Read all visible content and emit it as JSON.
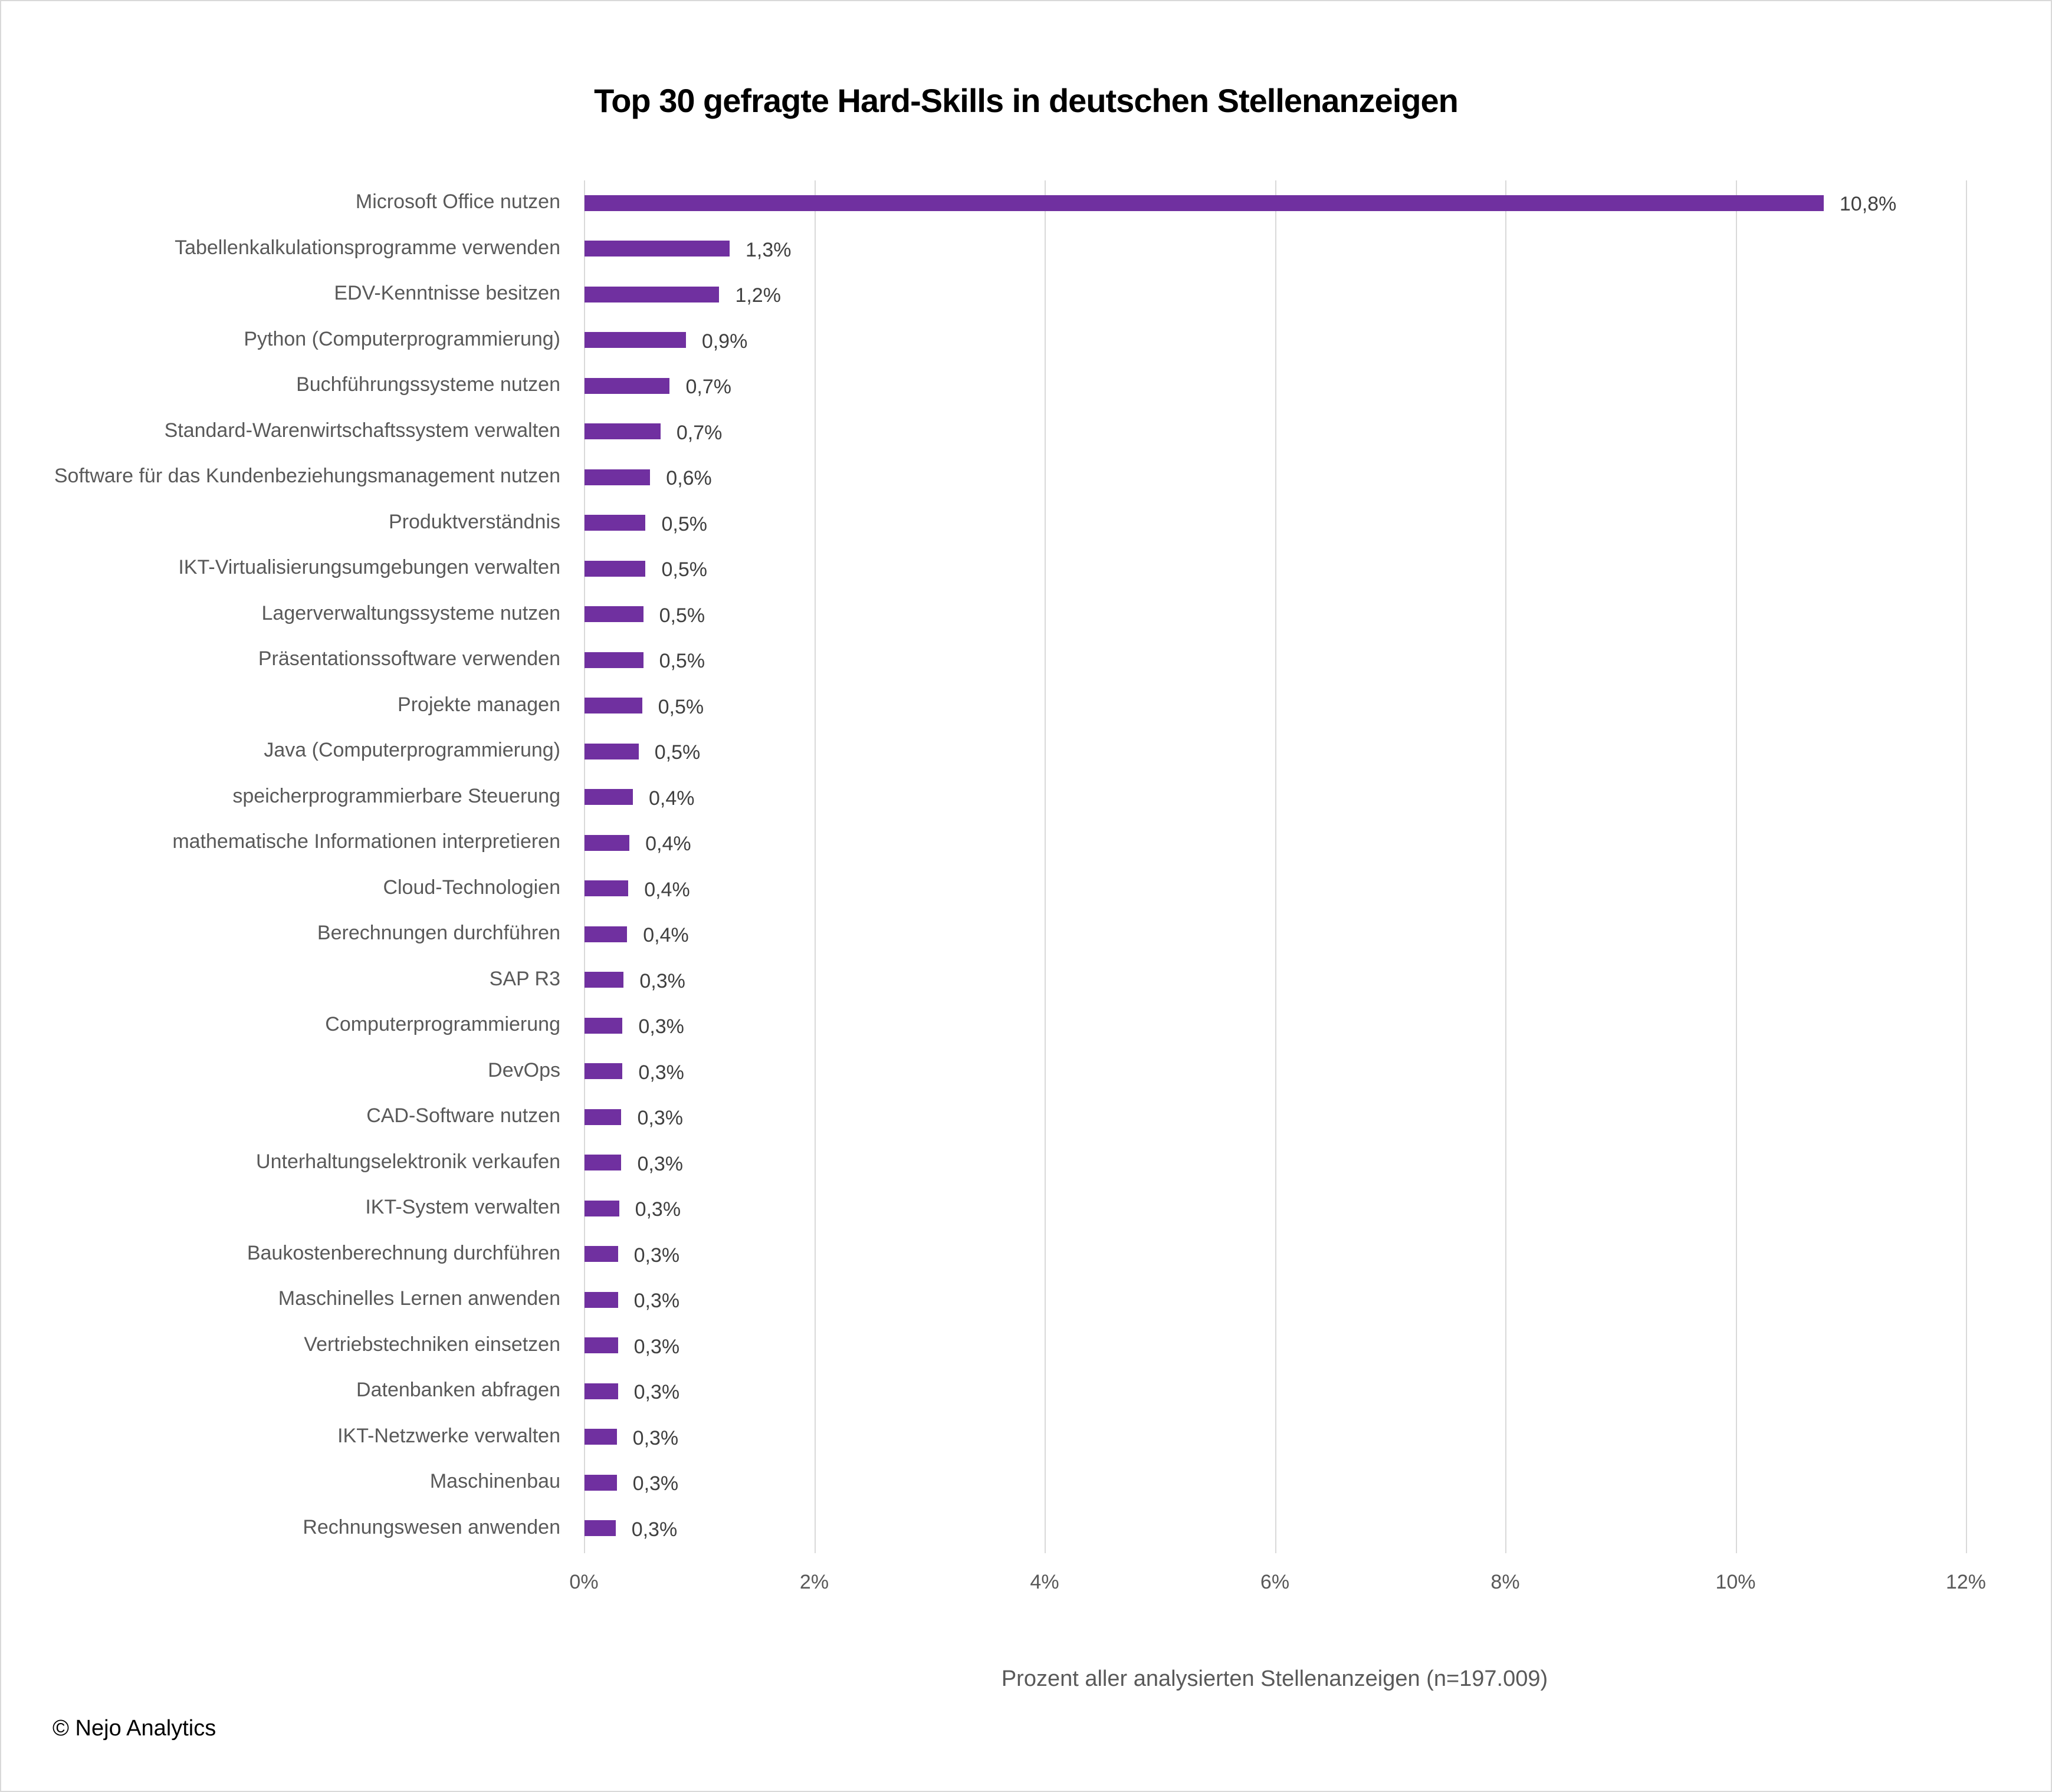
{
  "chart_data": {
    "type": "bar",
    "orientation": "horizontal",
    "title": "Top 30 gefragte Hard-Skills in deutschen Stellenanzeigen",
    "xlabel": "Prozent aller analysierten Stellenanzeigen (n=197.009)",
    "ylabel": "",
    "xlim": [
      0,
      12
    ],
    "x_ticks": [
      "0%",
      "2%",
      "4%",
      "6%",
      "8%",
      "10%",
      "12%"
    ],
    "grid": "vertical",
    "legend": null,
    "bar_color": "#7030a0",
    "categories": [
      "Microsoft Office nutzen",
      "Tabellenkalkulationsprogramme verwenden",
      "EDV-Kenntnisse besitzen",
      "Python (Computerprogrammierung)",
      "Buchführungssysteme nutzen",
      "Standard-Warenwirtschaftssystem verwalten",
      "Software für das Kundenbeziehungsmanagement nutzen",
      "Produktverständnis",
      "IKT-Virtualisierungsumgebungen verwalten",
      "Lagerverwaltungssysteme nutzen",
      "Präsentationssoftware verwenden",
      "Projekte managen",
      "Java (Computerprogrammierung)",
      "speicherprogrammierbare Steuerung",
      "mathematische Informationen interpretieren",
      "Cloud-Technologien",
      "Berechnungen durchführen",
      "SAP R3",
      "Computerprogrammierung",
      "DevOps",
      "CAD-Software nutzen",
      "Unterhaltungselektronik verkaufen",
      "IKT-System verwalten",
      "Baukostenberechnung durchführen",
      "Maschinelles Lernen anwenden",
      "Vertriebstechniken einsetzen",
      "Datenbanken abfragen",
      "IKT-Netzwerke verwalten",
      "Maschinenbau",
      "Rechnungswesen anwenden"
    ],
    "values": [
      10.76,
      1.26,
      1.17,
      0.88,
      0.74,
      0.66,
      0.57,
      0.53,
      0.53,
      0.51,
      0.51,
      0.5,
      0.47,
      0.42,
      0.39,
      0.38,
      0.37,
      0.34,
      0.33,
      0.33,
      0.32,
      0.32,
      0.3,
      0.29,
      0.29,
      0.29,
      0.29,
      0.28,
      0.28,
      0.27
    ],
    "value_labels": [
      "10,8%",
      "1,3%",
      "1,2%",
      "0,9%",
      "0,7%",
      "0,7%",
      "0,6%",
      "0,5%",
      "0,5%",
      "0,5%",
      "0,5%",
      "0,5%",
      "0,5%",
      "0,4%",
      "0,4%",
      "0,4%",
      "0,4%",
      "0,3%",
      "0,3%",
      "0,3%",
      "0,3%",
      "0,3%",
      "0,3%",
      "0,3%",
      "0,3%",
      "0,3%",
      "0,3%",
      "0,3%",
      "0,3%",
      "0,3%"
    ]
  },
  "footer": {
    "copyright": "© Nejo Analytics"
  }
}
